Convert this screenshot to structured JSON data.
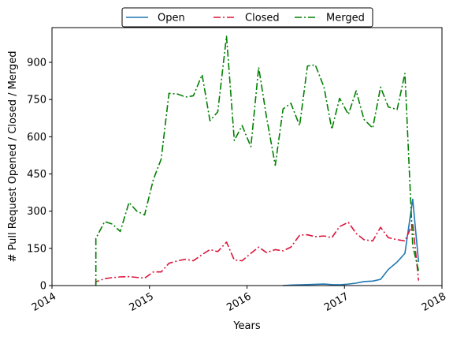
{
  "chart_data": {
    "type": "line",
    "xlabel": "Years",
    "ylabel": "# Pull Request Opened / Closed / Merged",
    "xlim": [
      2014.0,
      2018.0
    ],
    "ylim": [
      0,
      1040
    ],
    "x_ticks": [
      2014,
      2015,
      2016,
      2017,
      2018
    ],
    "x_tick_labels": [
      "2014",
      "2015",
      "2016",
      "2017",
      "2018"
    ],
    "y_ticks": [
      0,
      150,
      300,
      450,
      600,
      750,
      900
    ],
    "y_tick_labels": [
      "0",
      "150",
      "300",
      "450",
      "600",
      "750",
      "900"
    ],
    "grid": false,
    "legend_position": "top-center",
    "series": [
      {
        "name": "Open",
        "color": "#1f77b4",
        "style": "solid",
        "points": [
          [
            2016.37,
            0
          ],
          [
            2016.45,
            2
          ],
          [
            2016.54,
            3
          ],
          [
            2016.62,
            4
          ],
          [
            2016.7,
            5
          ],
          [
            2016.79,
            6
          ],
          [
            2016.87,
            4
          ],
          [
            2016.95,
            3
          ],
          [
            2017.04,
            6
          ],
          [
            2017.12,
            10
          ],
          [
            2017.2,
            16
          ],
          [
            2017.29,
            18
          ],
          [
            2017.37,
            25
          ],
          [
            2017.45,
            65
          ],
          [
            2017.54,
            95
          ],
          [
            2017.62,
            130
          ],
          [
            2017.7,
            348
          ],
          [
            2017.76,
            95
          ]
        ]
      },
      {
        "name": "Closed",
        "color": "#dc143c",
        "style": "dashdot",
        "points": [
          [
            2014.45,
            0
          ],
          [
            2014.45,
            15
          ],
          [
            2014.54,
            28
          ],
          [
            2014.62,
            32
          ],
          [
            2014.7,
            35
          ],
          [
            2014.79,
            36
          ],
          [
            2014.87,
            33
          ],
          [
            2014.95,
            30
          ],
          [
            2015.04,
            55
          ],
          [
            2015.12,
            55
          ],
          [
            2015.2,
            90
          ],
          [
            2015.29,
            100
          ],
          [
            2015.37,
            106
          ],
          [
            2015.45,
            100
          ],
          [
            2015.54,
            125
          ],
          [
            2015.62,
            145
          ],
          [
            2015.7,
            137
          ],
          [
            2015.79,
            175
          ],
          [
            2015.87,
            103
          ],
          [
            2015.95,
            100
          ],
          [
            2016.04,
            130
          ],
          [
            2016.12,
            155
          ],
          [
            2016.2,
            133
          ],
          [
            2016.29,
            145
          ],
          [
            2016.37,
            140
          ],
          [
            2016.45,
            155
          ],
          [
            2016.54,
            203
          ],
          [
            2016.62,
            205
          ],
          [
            2016.7,
            197
          ],
          [
            2016.79,
            200
          ],
          [
            2016.87,
            193
          ],
          [
            2016.95,
            238
          ],
          [
            2017.04,
            255
          ],
          [
            2017.12,
            210
          ],
          [
            2017.2,
            185
          ],
          [
            2017.29,
            180
          ],
          [
            2017.37,
            235
          ],
          [
            2017.45,
            193
          ],
          [
            2017.54,
            185
          ],
          [
            2017.62,
            180
          ],
          [
            2017.7,
            250
          ],
          [
            2017.76,
            20
          ]
        ]
      },
      {
        "name": "Merged",
        "color": "#008000",
        "style": "dashdot",
        "points": [
          [
            2014.45,
            0
          ],
          [
            2014.45,
            190
          ],
          [
            2014.54,
            258
          ],
          [
            2014.62,
            248
          ],
          [
            2014.7,
            218
          ],
          [
            2014.79,
            335
          ],
          [
            2014.87,
            300
          ],
          [
            2014.95,
            285
          ],
          [
            2015.04,
            428
          ],
          [
            2015.12,
            510
          ],
          [
            2015.2,
            775
          ],
          [
            2015.29,
            772
          ],
          [
            2015.37,
            760
          ],
          [
            2015.45,
            765
          ],
          [
            2015.54,
            850
          ],
          [
            2015.62,
            665
          ],
          [
            2015.7,
            700
          ],
          [
            2015.79,
            1005
          ],
          [
            2015.87,
            585
          ],
          [
            2015.95,
            645
          ],
          [
            2016.04,
            560
          ],
          [
            2016.12,
            880
          ],
          [
            2016.2,
            680
          ],
          [
            2016.29,
            485
          ],
          [
            2016.37,
            712
          ],
          [
            2016.45,
            735
          ],
          [
            2016.54,
            645
          ],
          [
            2016.62,
            885
          ],
          [
            2016.7,
            890
          ],
          [
            2016.79,
            800
          ],
          [
            2016.87,
            630
          ],
          [
            2016.95,
            755
          ],
          [
            2017.04,
            690
          ],
          [
            2017.12,
            785
          ],
          [
            2017.2,
            670
          ],
          [
            2017.29,
            635
          ],
          [
            2017.37,
            800
          ],
          [
            2017.45,
            720
          ],
          [
            2017.54,
            710
          ],
          [
            2017.62,
            855
          ],
          [
            2017.7,
            160
          ],
          [
            2017.76,
            60
          ]
        ]
      }
    ]
  }
}
